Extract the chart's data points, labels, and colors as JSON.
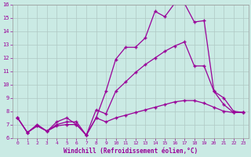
{
  "xlabel": "Windchill (Refroidissement éolien,°C)",
  "background_color": "#caeae4",
  "grid_color": "#b0c8c4",
  "line_color": "#990099",
  "xlim": [
    -0.5,
    23.5
  ],
  "ylim": [
    6,
    16
  ],
  "yticks": [
    6,
    7,
    8,
    9,
    10,
    11,
    12,
    13,
    14,
    15,
    16
  ],
  "xticks": [
    0,
    1,
    2,
    3,
    4,
    5,
    6,
    7,
    8,
    9,
    10,
    11,
    12,
    13,
    14,
    15,
    16,
    17,
    18,
    19,
    20,
    21,
    22,
    23
  ],
  "line1_x": [
    0,
    1,
    2,
    3,
    4,
    5,
    6,
    7,
    8,
    9,
    10,
    11,
    12,
    13,
    14,
    15,
    16,
    17,
    18,
    19,
    20,
    21,
    22,
    23
  ],
  "line1_y": [
    7.5,
    6.4,
    6.9,
    6.5,
    6.9,
    7.0,
    7.0,
    6.2,
    7.5,
    9.5,
    11.9,
    12.8,
    12.8,
    13.5,
    15.5,
    15.1,
    16.1,
    16.1,
    14.7,
    14.8,
    9.5,
    9.0,
    8.0,
    7.9
  ],
  "line2_x": [
    0,
    1,
    2,
    3,
    4,
    5,
    6,
    7,
    8,
    9,
    10,
    11,
    12,
    13,
    14,
    15,
    16,
    17,
    18,
    19,
    20,
    21,
    22,
    23
  ],
  "line2_y": [
    7.5,
    6.4,
    6.9,
    6.5,
    7.2,
    7.5,
    7.0,
    6.2,
    8.1,
    7.8,
    9.5,
    10.2,
    10.9,
    11.5,
    12.0,
    12.5,
    12.9,
    13.2,
    11.4,
    11.4,
    9.5,
    8.5,
    7.9,
    7.9
  ],
  "line3_x": [
    0,
    1,
    2,
    3,
    4,
    5,
    6,
    7,
    8,
    9,
    10,
    11,
    12,
    13,
    14,
    15,
    16,
    17,
    18,
    19,
    20,
    21,
    22,
    23
  ],
  "line3_y": [
    7.5,
    6.4,
    7.0,
    6.5,
    7.0,
    7.2,
    7.2,
    6.2,
    7.5,
    7.2,
    7.5,
    7.7,
    7.9,
    8.1,
    8.3,
    8.5,
    8.7,
    8.8,
    8.8,
    8.6,
    8.3,
    8.0,
    7.9,
    7.9
  ]
}
